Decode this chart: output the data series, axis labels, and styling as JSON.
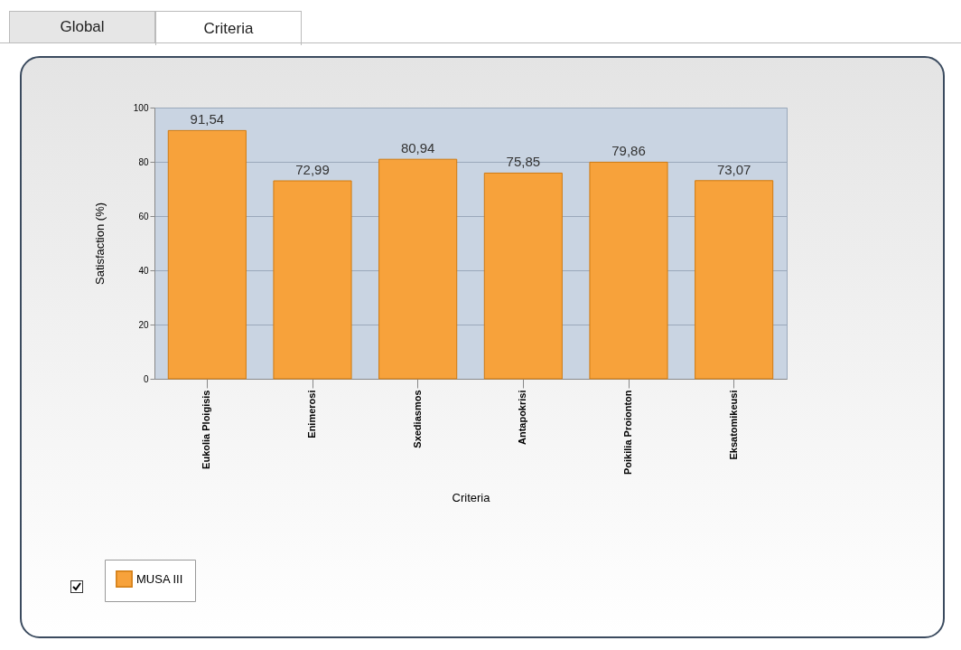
{
  "chart_data": {
    "type": "bar",
    "xlabel": "Criteria",
    "ylabel": "Satisfaction (%)",
    "annotations": [
      "Global",
      "Criteria"
    ],
    "categories": [
      "Eukolia Ploigisis",
      "Enimerosi",
      "Sxediasmos",
      "Antapokrisi",
      "Poikilia Proionton",
      "Eksatomikeusi"
    ],
    "series": [
      {
        "name": "MUSA III",
        "color": "#f7a23b",
        "values": [
          91.54,
          72.99,
          80.94,
          75.85,
          79.86,
          73.07
        ],
        "value_labels": [
          "91,54",
          "72,99",
          "80,94",
          "75,85",
          "79,86",
          "73,07"
        ]
      }
    ],
    "ylim": [
      0,
      100
    ],
    "yticks": [
      0,
      20,
      40,
      60,
      80,
      100
    ],
    "grid": "y",
    "legend": "bottom left"
  }
}
